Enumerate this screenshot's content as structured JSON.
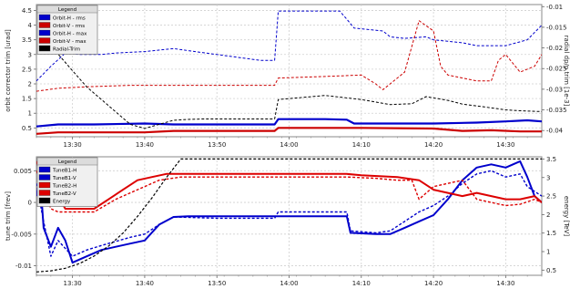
{
  "chart_data": [
    {
      "type": "line",
      "ylabel": "orbit corrector trim [urad]",
      "y2label": "radial dp/p trim [1e-3]",
      "ylim": [
        0.2,
        4.7
      ],
      "y2lim": [
        -0.0415,
        -0.0095
      ],
      "yticks": [
        "0.5",
        "1",
        "1.5",
        "2",
        "2.5",
        "3",
        "3.5",
        "4",
        "4.5"
      ],
      "y2ticks": [
        "-0.01",
        "-0.015",
        "-0.02",
        "-0.025",
        "-0.03",
        "-0.035",
        "-0.04"
      ],
      "xlim": [
        "13:25",
        "14:35"
      ],
      "xticks": [
        "13:30",
        "13:40",
        "13:50",
        "14:00",
        "14:10",
        "14:20",
        "14:30"
      ],
      "grid": true,
      "legend": {
        "title": "Legend",
        "placement": "top-left",
        "entries": [
          "Orbit-H - rms",
          "Orbit-V - rms",
          "Orbit-H - max",
          "Orbit-V - max",
          "Radial-Trim"
        ]
      },
      "series": [
        {
          "name": "Orbit-H - rms",
          "color": "#0000cc",
          "style": "solid",
          "width": 2.2,
          "axis": "left",
          "x": [
            "13:25",
            "13:28",
            "13:33",
            "13:40",
            "13:44",
            "13:55",
            "13:58",
            "13:58.5",
            "14:05",
            "14:08",
            "14:09",
            "14:20",
            "14:26",
            "14:30",
            "14:33",
            "14:35"
          ],
          "y": [
            0.55,
            0.62,
            0.62,
            0.65,
            0.62,
            0.62,
            0.62,
            0.8,
            0.8,
            0.78,
            0.65,
            0.65,
            0.68,
            0.72,
            0.76,
            0.72
          ]
        },
        {
          "name": "Orbit-V - rms",
          "color": "#cc0000",
          "style": "solid",
          "width": 2.2,
          "axis": "left",
          "x": [
            "13:25",
            "13:28",
            "13:40",
            "13:44",
            "13:58",
            "13:58.5",
            "14:10",
            "14:20",
            "14:24",
            "14:28",
            "14:32",
            "14:35"
          ],
          "y": [
            0.3,
            0.35,
            0.35,
            0.4,
            0.4,
            0.5,
            0.5,
            0.48,
            0.4,
            0.42,
            0.38,
            0.38
          ]
        },
        {
          "name": "Orbit-H - max",
          "color": "#0000cc",
          "style": "dashed",
          "width": 1,
          "axis": "left",
          "x": [
            "13:25",
            "13:27",
            "13:29",
            "13:31",
            "13:34",
            "13:36",
            "13:40",
            "13:44",
            "13:47",
            "13:50",
            "13:56",
            "13:58",
            "13:58.5",
            "14:07",
            "14:08",
            "14:09",
            "14:13",
            "14:14",
            "14:16",
            "14:19",
            "14:20",
            "14:22",
            "14:24",
            "14:26",
            "14:28",
            "14:30",
            "14:33",
            "14:35"
          ],
          "y": [
            2.1,
            2.6,
            3.05,
            3.0,
            3.0,
            3.05,
            3.1,
            3.2,
            3.1,
            3.0,
            2.8,
            2.8,
            4.48,
            4.48,
            4.2,
            3.9,
            3.8,
            3.6,
            3.55,
            3.6,
            3.5,
            3.45,
            3.4,
            3.3,
            3.3,
            3.3,
            3.5,
            4.0
          ]
        },
        {
          "name": "Orbit-V - max",
          "color": "#cc0000",
          "style": "dashed",
          "width": 1,
          "axis": "left",
          "x": [
            "13:25",
            "13:28",
            "13:32",
            "13:38",
            "13:43",
            "13:50",
            "13:58",
            "13:58.5",
            "14:05",
            "14:10",
            "14:12",
            "14:13",
            "14:16",
            "14:18",
            "14:20",
            "14:21",
            "14:22",
            "14:26",
            "14:28",
            "14:29",
            "14:30",
            "14:32",
            "14:34",
            "14:35"
          ],
          "y": [
            1.75,
            1.85,
            1.9,
            1.95,
            1.95,
            1.95,
            1.95,
            2.2,
            2.25,
            2.3,
            2.0,
            1.8,
            2.4,
            4.15,
            3.8,
            2.6,
            2.3,
            2.1,
            2.1,
            2.8,
            3.0,
            2.4,
            2.6,
            3.0
          ]
        },
        {
          "name": "Radial-Trim",
          "color": "#000000",
          "style": "dashed",
          "width": 1,
          "axis": "right",
          "x": [
            "13:26",
            "13:28",
            "13:30",
            "13:32",
            "13:34",
            "13:36",
            "13:38",
            "13:40",
            "13:42",
            "13:44",
            "13:46",
            "13:48",
            "13:50",
            "13:55",
            "13:58",
            "13:58.5",
            "14:05",
            "14:10",
            "14:14",
            "14:17",
            "14:19",
            "14:22",
            "14:24",
            "14:28",
            "14:30",
            "14:32",
            "14:35"
          ],
          "y": [
            -0.0175,
            -0.0215,
            -0.0255,
            -0.0295,
            -0.0325,
            -0.0355,
            -0.0385,
            -0.0395,
            -0.0385,
            -0.0375,
            -0.0373,
            -0.0372,
            -0.0372,
            -0.0372,
            -0.0372,
            -0.0325,
            -0.0315,
            -0.0325,
            -0.0337,
            -0.0335,
            -0.0318,
            -0.0327,
            -0.0336,
            -0.0345,
            -0.035,
            -0.0352,
            -0.0354
          ]
        }
      ]
    },
    {
      "type": "line",
      "ylabel": "tune trim [frev]",
      "y2label": "energy [TeV]",
      "ylim": [
        -0.0115,
        0.0072
      ],
      "y2lim": [
        0.36,
        3.56
      ],
      "yticks": [
        "0.005",
        "0",
        "-0.005",
        "-0.01"
      ],
      "y2ticks": [
        "0.5",
        "1",
        "1.5",
        "2",
        "2.5",
        "3",
        "3.5"
      ],
      "xlim": [
        "13:25",
        "14:35"
      ],
      "xticks": [
        "13:30",
        "13:40",
        "13:50",
        "14:00",
        "14:10",
        "14:20",
        "14:30"
      ],
      "grid": true,
      "legend": {
        "title": "Legend",
        "placement": "top-left",
        "entries": [
          "TuneB1-H",
          "TuneB1-V",
          "TuneB2-H",
          "TuneB2-V",
          "Energy"
        ]
      },
      "series": [
        {
          "name": "TuneB1-H",
          "color": "#0000cc",
          "style": "solid",
          "width": 2,
          "axis": "left",
          "x": [
            "13:25",
            "13:25.5",
            "13:26",
            "13:27",
            "13:28",
            "13:29",
            "13:30",
            "13:32",
            "13:34",
            "13:36",
            "13:38",
            "13:40",
            "13:42",
            "13:44",
            "13:46",
            "13:50",
            "13:55",
            "14:00",
            "14:05",
            "14:08",
            "14:08.5",
            "14:12",
            "14:14",
            "14:16",
            "14:18",
            "14:20",
            "14:22",
            "14:24",
            "14:26",
            "14:28",
            "14:30",
            "14:32",
            "14:33",
            "14:34",
            "14:35"
          ],
          "y": [
            0.001,
            0.004,
            -0.004,
            -0.007,
            -0.004,
            -0.006,
            -0.0095,
            -0.0085,
            -0.0075,
            -0.007,
            -0.0065,
            -0.006,
            -0.0035,
            -0.0023,
            -0.0022,
            -0.0022,
            -0.0022,
            -0.0022,
            -0.0022,
            -0.0022,
            -0.0048,
            -0.005,
            -0.005,
            -0.004,
            -0.003,
            -0.002,
            0.0005,
            0.0035,
            0.0055,
            0.006,
            0.0055,
            0.0065,
            0.004,
            0.001,
            0.0
          ]
        },
        {
          "name": "TuneB1-V",
          "color": "#0000cc",
          "style": "dashed",
          "width": 1.4,
          "axis": "left",
          "x": [
            "13:25",
            "13:26",
            "13:27",
            "13:28",
            "13:30",
            "13:32",
            "13:34",
            "13:38",
            "13:40",
            "13:42",
            "13:44",
            "13:50",
            "13:58",
            "13:58.5",
            "14:05",
            "14:08",
            "14:08.5",
            "14:12",
            "14:14",
            "14:16",
            "14:18",
            "14:20",
            "14:22",
            "14:24",
            "14:26",
            "14:28",
            "14:30",
            "14:32",
            "14:33",
            "14:35"
          ],
          "y": [
            0.003,
            -0.003,
            -0.0085,
            -0.006,
            -0.0085,
            -0.0075,
            -0.0068,
            -0.0055,
            -0.005,
            -0.0035,
            -0.0023,
            -0.0025,
            -0.0025,
            -0.0015,
            -0.0015,
            -0.0015,
            -0.0045,
            -0.0048,
            -0.0045,
            -0.003,
            -0.0015,
            -0.0005,
            0.001,
            0.003,
            0.0045,
            0.005,
            0.004,
            0.0045,
            0.0025,
            0.001
          ]
        },
        {
          "name": "TuneB2-H",
          "color": "#dd0000",
          "style": "solid",
          "width": 2,
          "axis": "left",
          "x": [
            "13:25",
            "13:25.5",
            "13:26",
            "13:27",
            "13:28",
            "13:29",
            "13:31",
            "13:33",
            "13:35",
            "13:37",
            "13:39",
            "13:41",
            "13:43",
            "13:46",
            "13:50",
            "14:00",
            "14:08",
            "14:10",
            "14:15",
            "14:18",
            "14:20",
            "14:22",
            "14:24",
            "14:26",
            "14:28",
            "14:30",
            "14:32",
            "14:34",
            "14:35"
          ],
          "y": [
            0.0065,
            0.005,
            0.003,
            0.001,
            0.001,
            -0.001,
            -0.001,
            -0.001,
            0.0005,
            0.002,
            0.0035,
            0.004,
            0.0045,
            0.0045,
            0.0045,
            0.0045,
            0.0045,
            0.0043,
            0.004,
            0.0035,
            0.002,
            0.0015,
            0.001,
            0.0015,
            0.001,
            0.0005,
            0.0005,
            0.001,
            0.0
          ]
        },
        {
          "name": "TuneB2-V",
          "color": "#dd0000",
          "style": "dashed",
          "width": 1.4,
          "axis": "left",
          "x": [
            "13:25",
            "13:26",
            "13:27",
            "13:28",
            "13:30",
            "13:33",
            "13:36",
            "13:39",
            "13:42",
            "13:45",
            "13:50",
            "14:00",
            "14:08",
            "14:12",
            "14:15",
            "14:17",
            "14:18",
            "14:20",
            "14:22",
            "14:24",
            "14:26",
            "14:28",
            "14:30",
            "14:32",
            "14:34",
            "14:35"
          ],
          "y": [
            0.005,
            0.002,
            -0.001,
            -0.0015,
            -0.0015,
            -0.0015,
            0.0005,
            0.002,
            0.0035,
            0.004,
            0.004,
            0.004,
            0.004,
            0.0038,
            0.0035,
            0.0035,
            0.0005,
            0.0025,
            0.003,
            0.0035,
            0.0005,
            0.0,
            -0.0005,
            -0.0003,
            0.0005,
            0.0
          ]
        },
        {
          "name": "Energy",
          "color": "#000000",
          "style": "dashed",
          "width": 1.2,
          "axis": "right",
          "x": [
            "13:25",
            "13:27",
            "13:29",
            "13:31",
            "13:33",
            "13:35",
            "13:37",
            "13:39",
            "13:41",
            "13:43",
            "13:45",
            "14:00",
            "14:20",
            "14:35"
          ],
          "y": [
            0.45,
            0.48,
            0.55,
            0.68,
            0.88,
            1.15,
            1.5,
            1.95,
            2.45,
            3.0,
            3.5,
            3.5,
            3.5,
            3.5
          ]
        }
      ]
    }
  ]
}
